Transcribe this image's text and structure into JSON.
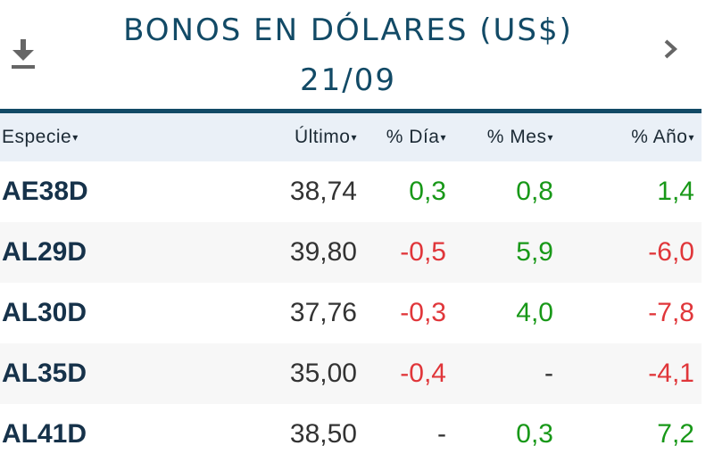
{
  "header": {
    "title": "BONOS EN DÓLARES (US$)",
    "date": "21/09",
    "download_icon": "download-icon",
    "next_icon": "chevron-right-icon"
  },
  "table": {
    "columns": [
      {
        "label": "Especie",
        "sort_icon": "▾"
      },
      {
        "label": "Último",
        "sort_icon": "▾"
      },
      {
        "label": "% Día",
        "sort_icon": "▾"
      },
      {
        "label": "% Mes",
        "sort_icon": "▾"
      },
      {
        "label": "% Año",
        "sort_icon": "▾"
      }
    ],
    "rows": [
      {
        "symbol": "AE38D",
        "last": "38,74",
        "day": "0,3",
        "month": "0,8",
        "year": "1,4",
        "day_dir": "pos",
        "month_dir": "pos",
        "year_dir": "pos"
      },
      {
        "symbol": "AL29D",
        "last": "39,80",
        "day": "-0,5",
        "month": "5,9",
        "year": "-6,0",
        "day_dir": "neg",
        "month_dir": "pos",
        "year_dir": "neg"
      },
      {
        "symbol": "AL30D",
        "last": "37,76",
        "day": "-0,3",
        "month": "4,0",
        "year": "-7,8",
        "day_dir": "neg",
        "month_dir": "pos",
        "year_dir": "neg"
      },
      {
        "symbol": "AL35D",
        "last": "35,00",
        "day": "-0,4",
        "month": "-",
        "year": "-4,1",
        "day_dir": "neg",
        "month_dir": "flat",
        "year_dir": "neg"
      },
      {
        "symbol": "AL41D",
        "last": "38,50",
        "day": "-",
        "month": "0,3",
        "year": "7,2",
        "day_dir": "flat",
        "month_dir": "pos",
        "year_dir": "pos"
      }
    ]
  },
  "colors": {
    "title": "#124a66",
    "positive": "#189818",
    "negative": "#e0363a",
    "header_bg": "#eaf0f7"
  }
}
